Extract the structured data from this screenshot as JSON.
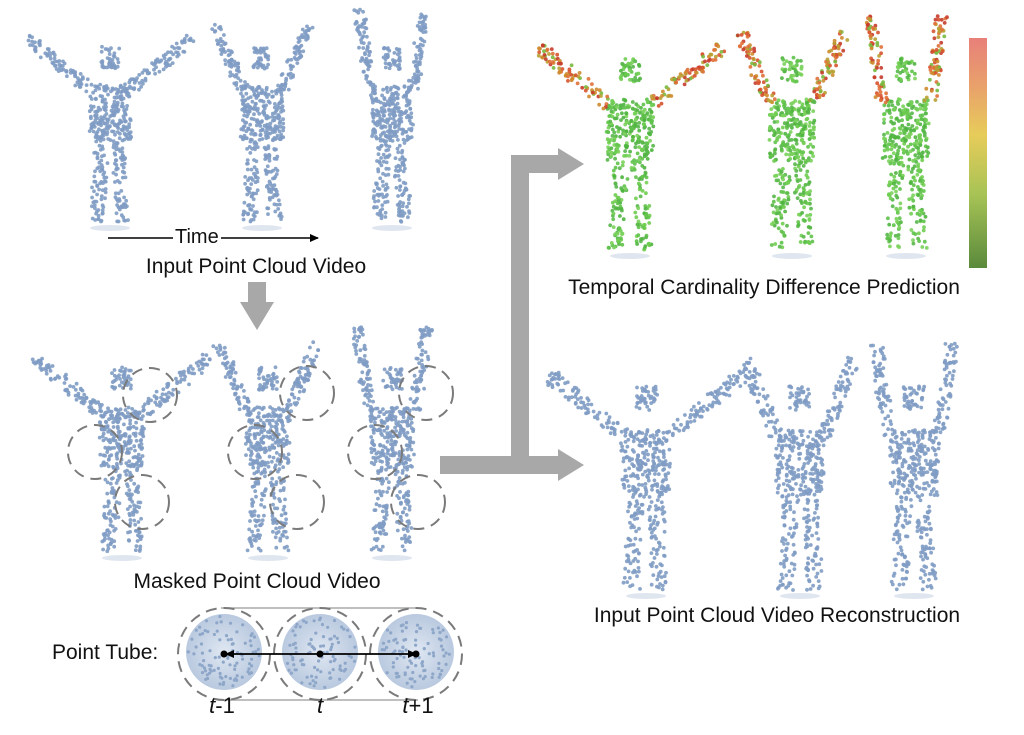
{
  "captions": {
    "time_axis": "Time",
    "input_video": "Input Point Cloud Video",
    "masked_video": "Masked Point Cloud Video",
    "cardinality_prediction": "Temporal Cardinality Difference Prediction",
    "reconstruction": "Input Point Cloud Video Reconstruction"
  },
  "point_tube": {
    "label": "Point Tube:",
    "frames": [
      {
        "var": "t",
        "suffix": "-1"
      },
      {
        "var": "t",
        "suffix": ""
      },
      {
        "var": "t",
        "suffix": "+1"
      }
    ]
  },
  "colors": {
    "point_blue": "#7f9cc4",
    "arrow_gray": "#a8a8a8",
    "mask_dash": "#7a7a7a",
    "colorbar": [
      "#e8807a",
      "#e9a36a",
      "#e7cc5a",
      "#a7c355",
      "#5a8a3c"
    ]
  }
}
